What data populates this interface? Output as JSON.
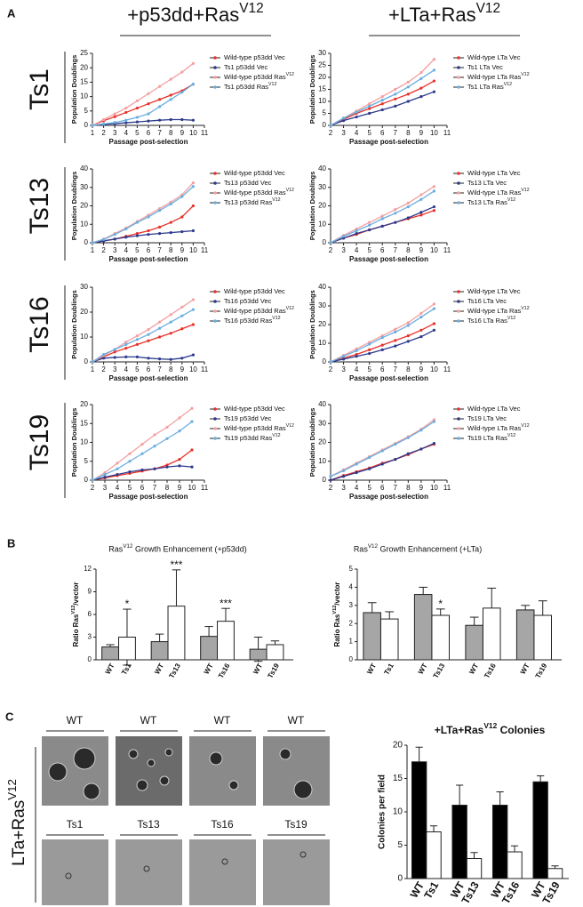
{
  "panel_labels": [
    "A",
    "B",
    "C"
  ],
  "panel_a": {
    "column_titles": [
      "+p53dd+RasV12",
      "+LTa+RasV12"
    ],
    "row_labels": [
      "Ts1",
      "Ts13",
      "Ts16",
      "Ts19"
    ]
  },
  "panel_c": {
    "row_label": "LTa+RasV12",
    "image_labels_top": [
      "WT",
      "WT",
      "WT",
      "WT"
    ],
    "image_labels_bottom": [
      "Ts1",
      "Ts13",
      "Ts16",
      "Ts19"
    ]
  },
  "chart_data": [
    {
      "type": "line",
      "xlabel": "Passage post-selection",
      "ylabel": "Population Doublings",
      "x": [
        1,
        2,
        3,
        4,
        5,
        6,
        7,
        8,
        9,
        10
      ],
      "xlim": [
        1,
        11
      ],
      "xticks": [
        1,
        2,
        3,
        4,
        5,
        6,
        7,
        8,
        9,
        10,
        11
      ],
      "ylim": [
        0,
        25
      ],
      "yticks": [
        0,
        5,
        10,
        15,
        20,
        25
      ],
      "series": [
        {
          "name": "Wild-type p53dd Vec",
          "color": "#e8312a",
          "values": [
            0,
            1.6,
            3,
            4.5,
            6,
            7.5,
            9,
            10.5,
            12,
            14.3
          ]
        },
        {
          "name": "Ts1 p53dd Vec",
          "color": "#2d3a8c",
          "values": [
            0,
            0.3,
            0.6,
            0.9,
            1.2,
            1.5,
            1.8,
            2,
            2,
            1.8
          ]
        },
        {
          "name": "Wild-type p53dd RasV12",
          "color": "#f4a0a0",
          "values": [
            0,
            2,
            4,
            6,
            8.5,
            11,
            13.5,
            16,
            18.5,
            21.5
          ]
        },
        {
          "name": "Ts1 p53dd RasV12",
          "color": "#6aaee0",
          "values": [
            0,
            0.5,
            1,
            1.8,
            2.8,
            4,
            6.5,
            9,
            11.5,
            14.3
          ]
        }
      ]
    },
    {
      "type": "line",
      "xlabel": "Passage post-selection",
      "ylabel": "Population Doublings",
      "x": [
        2,
        3,
        4,
        5,
        6,
        7,
        8,
        9,
        10
      ],
      "xlim": [
        2,
        11
      ],
      "xticks": [
        2,
        3,
        4,
        5,
        6,
        7,
        8,
        9,
        10,
        11
      ],
      "ylim": [
        0,
        30
      ],
      "yticks": [
        0,
        5,
        10,
        15,
        20,
        25,
        30
      ],
      "series": [
        {
          "name": "Wild-type LTa Vec",
          "color": "#e8312a",
          "values": [
            0,
            2.5,
            5,
            7,
            9,
            11,
            13,
            15.5,
            18.5
          ]
        },
        {
          "name": "Ts1 LTa Vec",
          "color": "#2d3a8c",
          "values": [
            0,
            2,
            3.5,
            5,
            6.5,
            8,
            10,
            12,
            14
          ]
        },
        {
          "name": "Wild-type LTa RasV12",
          "color": "#f4a0a0",
          "values": [
            0,
            3,
            6,
            9,
            12,
            15,
            18,
            22,
            27.5
          ]
        },
        {
          "name": "Ts1 LTa RasV12",
          "color": "#6aaee0",
          "values": [
            0,
            3,
            5.5,
            8,
            10.5,
            13,
            16,
            19.5,
            23
          ]
        }
      ]
    },
    {
      "type": "line",
      "xlabel": "Passage post-selection",
      "ylabel": "Population Doublings",
      "x": [
        1,
        2,
        3,
        4,
        5,
        6,
        7,
        8,
        9,
        10
      ],
      "xlim": [
        1,
        11
      ],
      "xticks": [
        1,
        2,
        3,
        4,
        5,
        6,
        7,
        8,
        9,
        10,
        11
      ],
      "ylim": [
        0,
        40
      ],
      "yticks": [
        0,
        10,
        20,
        30,
        40
      ],
      "series": [
        {
          "name": "Wild-type p53dd Vec",
          "color": "#e8312a",
          "values": [
            0,
            1,
            2,
            3.5,
            5,
            6.5,
            8.5,
            11,
            14,
            20
          ]
        },
        {
          "name": "Ts13 p53dd Vec",
          "color": "#2d3a8c",
          "values": [
            0,
            1,
            2,
            3,
            3.8,
            4.5,
            5,
            5.5,
            6,
            6.5
          ]
        },
        {
          "name": "Wild-type p53dd RasV12",
          "color": "#f4a0a0",
          "values": [
            0,
            2,
            5,
            8,
            11.5,
            15,
            18.5,
            22,
            26,
            32.5
          ]
        },
        {
          "name": "Ts13 p53dd RasV12",
          "color": "#6aaee0",
          "values": [
            0,
            1.8,
            4.5,
            7.5,
            11,
            14,
            17.5,
            21,
            25,
            30.5
          ]
        }
      ]
    },
    {
      "type": "line",
      "xlabel": "Passage post-selection",
      "ylabel": "Population Doublings",
      "x": [
        2,
        3,
        4,
        5,
        6,
        7,
        8,
        9,
        10
      ],
      "xlim": [
        2,
        11
      ],
      "xticks": [
        2,
        3,
        4,
        5,
        6,
        7,
        8,
        9,
        10,
        11
      ],
      "ylim": [
        0,
        40
      ],
      "yticks": [
        0,
        10,
        20,
        30,
        40
      ],
      "series": [
        {
          "name": "Wild-type LTa Vec",
          "color": "#e8312a",
          "values": [
            0,
            2.5,
            4.5,
            7,
            9,
            11,
            13,
            15,
            17.5
          ]
        },
        {
          "name": "Ts13 LTa Vec",
          "color": "#2d3a8c",
          "values": [
            0,
            2.5,
            5,
            7,
            9,
            11,
            13.5,
            16.5,
            19.5
          ]
        },
        {
          "name": "Wild-type LTa RasV12",
          "color": "#f4a0a0",
          "values": [
            0,
            4,
            7.5,
            11,
            14.5,
            18,
            21.5,
            26,
            30.5
          ]
        },
        {
          "name": "Ts13 LTa RasV12",
          "color": "#6aaee0",
          "values": [
            0,
            3.5,
            6.5,
            9.5,
            13,
            16,
            19.5,
            23.5,
            28
          ]
        }
      ]
    },
    {
      "type": "line",
      "xlabel": "Passage post-selection",
      "ylabel": "Population Doublings",
      "x": [
        1,
        2,
        3,
        4,
        5,
        6,
        7,
        8,
        9,
        10
      ],
      "xlim": [
        1,
        11
      ],
      "xticks": [
        1,
        2,
        3,
        4,
        5,
        6,
        7,
        8,
        9,
        10,
        11
      ],
      "ylim": [
        0,
        30
      ],
      "yticks": [
        0,
        10,
        20,
        30
      ],
      "series": [
        {
          "name": "Wild-type p53dd Vec",
          "color": "#e8312a",
          "values": [
            0,
            2,
            4,
            5.5,
            7,
            8.5,
            10,
            11.5,
            13.3,
            15
          ]
        },
        {
          "name": "Ts16 p53dd Vec",
          "color": "#2d3a8c",
          "values": [
            0,
            1.5,
            1.8,
            2,
            2,
            1.5,
            1.2,
            1,
            1.5,
            2.8
          ]
        },
        {
          "name": "Wild-type p53dd RasV12",
          "color": "#f4a0a0",
          "values": [
            0,
            2.5,
            5,
            8,
            10.5,
            13,
            16,
            19,
            22,
            25
          ]
        },
        {
          "name": "Ts16 p53dd RasV12",
          "color": "#6aaee0",
          "values": [
            0,
            3,
            5,
            7,
            9,
            11,
            13.5,
            16,
            18.5,
            21
          ]
        }
      ]
    },
    {
      "type": "line",
      "xlabel": "Passage post-selection",
      "ylabel": "Population Doublings",
      "x": [
        2,
        3,
        4,
        5,
        6,
        7,
        8,
        9,
        10
      ],
      "xlim": [
        2,
        11
      ],
      "xticks": [
        2,
        3,
        4,
        5,
        6,
        7,
        8,
        9,
        10,
        11
      ],
      "ylim": [
        0,
        40
      ],
      "yticks": [
        0,
        10,
        20,
        30,
        40
      ],
      "series": [
        {
          "name": "Wild-type LTa Vec",
          "color": "#e8312a",
          "values": [
            0,
            2,
            4,
            6.5,
            9,
            11.5,
            14,
            17,
            20.5
          ]
        },
        {
          "name": "Ts16 LTa Vec",
          "color": "#2d3a8c",
          "values": [
            0,
            1.5,
            3,
            4.5,
            6.5,
            8.5,
            11,
            13.5,
            17
          ]
        },
        {
          "name": "Wild-type LTa RasV12",
          "color": "#f4a0a0",
          "values": [
            0,
            3.5,
            7,
            10.5,
            14,
            17.5,
            21,
            26,
            31
          ]
        },
        {
          "name": "Ts16 LTa RasV12",
          "color": "#6aaee0",
          "values": [
            0,
            3,
            6,
            9.5,
            13,
            16,
            19.5,
            24,
            28.5
          ]
        }
      ]
    },
    {
      "type": "line",
      "xlabel": "Passage post-selection",
      "ylabel": "Population Doublings",
      "x": [
        2,
        3,
        4,
        5,
        6,
        7,
        8,
        9,
        10
      ],
      "xlim": [
        2,
        11
      ],
      "xticks": [
        2,
        3,
        4,
        5,
        6,
        7,
        8,
        9,
        10,
        11
      ],
      "ylim": [
        0,
        20
      ],
      "yticks": [
        0,
        5,
        10,
        15,
        20
      ],
      "series": [
        {
          "name": "Wild-type p53dd Vec",
          "color": "#e8312a",
          "values": [
            0,
            0.6,
            1.2,
            1.8,
            2.4,
            3,
            4,
            5.5,
            8
          ]
        },
        {
          "name": "Ts19 p53dd Vec",
          "color": "#2d3a8c",
          "values": [
            0,
            0.8,
            1.5,
            2.2,
            2.7,
            3,
            3.5,
            3.8,
            3.5
          ]
        },
        {
          "name": "Wild-type p53dd RasV12",
          "color": "#f4a0a0",
          "values": [
            0,
            2,
            4.5,
            7,
            9.5,
            12,
            14,
            16.5,
            19
          ]
        },
        {
          "name": "Ts19 p53dd RasV12",
          "color": "#6aaee0",
          "values": [
            0,
            1.5,
            3,
            5,
            7,
            9,
            11,
            13,
            15.5
          ]
        }
      ]
    },
    {
      "type": "line",
      "xlabel": "Passage post-selection",
      "ylabel": "Population Doublings",
      "x": [
        2,
        3,
        4,
        5,
        6,
        7,
        8,
        9,
        10
      ],
      "xlim": [
        2,
        11
      ],
      "xticks": [
        2,
        3,
        4,
        5,
        6,
        7,
        8,
        9,
        10,
        11
      ],
      "ylim": [
        0,
        40
      ],
      "yticks": [
        0,
        10,
        20,
        30,
        40
      ],
      "series": [
        {
          "name": "Wild-type LTa Vec",
          "color": "#e8312a",
          "values": [
            0,
            2.5,
            4.5,
            6.5,
            9,
            11,
            13.5,
            16.5,
            19
          ]
        },
        {
          "name": "Ts19 LTa Vec",
          "color": "#2d3a8c",
          "values": [
            0,
            2,
            4,
            6,
            8.5,
            11,
            14,
            16.5,
            19.5
          ]
        },
        {
          "name": "Wild-type LTa RasV12",
          "color": "#f4a0a0",
          "values": [
            2,
            5.5,
            9,
            12.5,
            16,
            19.5,
            23,
            27,
            32
          ]
        },
        {
          "name": "Ts19 LTa RasV12",
          "color": "#6aaee0",
          "values": [
            2,
            5,
            8.5,
            12,
            15.5,
            19,
            22.5,
            26.5,
            31
          ]
        }
      ]
    },
    {
      "type": "bar",
      "title": "RasV12 Growth Enhancement (+p53dd)",
      "ylabel": "Ratio RasV12/vector",
      "error_bars": "both",
      "categories": [
        "WT",
        "Ts1",
        "WT",
        "Ts13",
        "WT",
        "Ts16",
        "WT",
        "Ts19"
      ],
      "values": [
        1.7,
        3.0,
        2.4,
        7.1,
        3.1,
        5.1,
        1.4,
        2.0
      ],
      "errors": [
        0.3,
        3.7,
        1.0,
        4.8,
        1.3,
        1.7,
        1.6,
        0.5
      ],
      "colors": [
        "#a6a6a6",
        "#ffffff",
        "#a6a6a6",
        "#ffffff",
        "#a6a6a6",
        "#ffffff",
        "#a6a6a6",
        "#ffffff"
      ],
      "annotations": [
        null,
        "*",
        null,
        "***",
        null,
        "***",
        null,
        null
      ],
      "ylim": [
        0,
        12
      ],
      "yticks": [
        0,
        3,
        6,
        9,
        12
      ]
    },
    {
      "type": "bar",
      "title": "RasV12 Growth Enhancement (+LTa)",
      "ylabel": "Ratio RasV12/vector",
      "error_bars": "both",
      "categories": [
        "WT",
        "Ts1",
        "WT",
        "Ts13",
        "WT",
        "Ts16",
        "WT",
        "Ts19"
      ],
      "values": [
        2.6,
        2.25,
        3.6,
        2.45,
        1.9,
        2.85,
        2.75,
        2.45
      ],
      "errors": [
        0.55,
        0.4,
        0.4,
        0.35,
        0.45,
        1.1,
        0.25,
        0.8
      ],
      "colors": [
        "#a6a6a6",
        "#ffffff",
        "#a6a6a6",
        "#ffffff",
        "#a6a6a6",
        "#ffffff",
        "#a6a6a6",
        "#ffffff"
      ],
      "annotations": [
        null,
        null,
        null,
        "*",
        null,
        null,
        null,
        null
      ],
      "ylim": [
        0,
        5
      ],
      "yticks": [
        0,
        1,
        2,
        3,
        4,
        5
      ]
    },
    {
      "type": "bar",
      "title": "+LTa+RasV12 Colonies",
      "ylabel": "Colonies per field",
      "error_bars": "up",
      "categories": [
        "WT",
        "Ts1",
        "WT",
        "Ts13",
        "WT",
        "Ts16",
        "WT",
        "Ts19"
      ],
      "values": [
        17.5,
        7,
        11,
        3,
        11,
        4,
        14.5,
        1.5
      ],
      "errors": [
        2.2,
        0.9,
        3,
        0.9,
        2,
        0.9,
        0.9,
        0.4
      ],
      "colors": [
        "#000000",
        "#ffffff",
        "#000000",
        "#ffffff",
        "#000000",
        "#ffffff",
        "#000000",
        "#ffffff"
      ],
      "annotations": [
        null,
        null,
        null,
        null,
        null,
        null,
        null,
        null
      ],
      "ylim": [
        0,
        20
      ],
      "yticks": [
        0,
        5,
        10,
        15,
        20
      ]
    }
  ]
}
